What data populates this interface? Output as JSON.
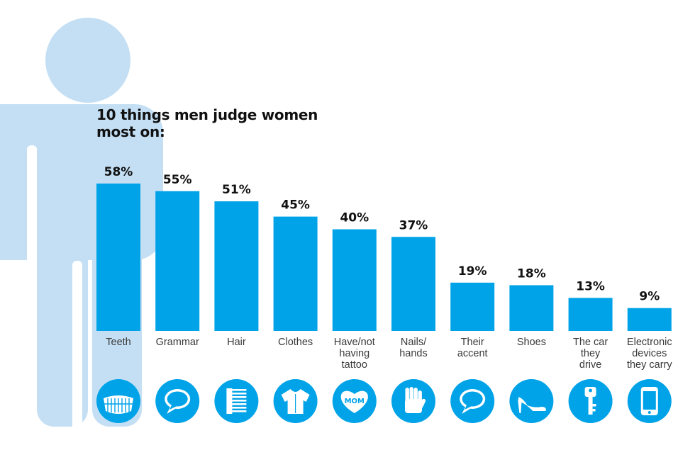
{
  "colors": {
    "bar": "#00a3e8",
    "silhouette": "#c4dff4",
    "icon_fill": "#00a3e8",
    "icon_glyph": "#ffffff",
    "value_text": "#111111",
    "category_text": "#3a3a3a"
  },
  "chart_data": {
    "type": "bar",
    "title": "10 things men judge women most on:",
    "unit": "%",
    "ylim": [
      0,
      60
    ],
    "grid": false,
    "legend": "none",
    "categories": [
      "Teeth",
      "Grammar",
      "Hair",
      "Clothes",
      "Have/not having tattoo",
      "Nails/ hands",
      "Their accent",
      "Shoes",
      "The car they drive",
      "Electronic devices they carry"
    ],
    "category_lines": [
      [
        "Teeth"
      ],
      [
        "Grammar"
      ],
      [
        "Hair"
      ],
      [
        "Clothes"
      ],
      [
        "Have/not",
        "having",
        "tattoo"
      ],
      [
        "Nails/",
        "hands"
      ],
      [
        "Their",
        "accent"
      ],
      [
        "Shoes"
      ],
      [
        "The car",
        "they",
        "drive"
      ],
      [
        "Electronic",
        "devices",
        "they carry"
      ]
    ],
    "values": [
      58,
      55,
      51,
      45,
      40,
      37,
      19,
      18,
      13,
      9
    ],
    "value_labels": [
      "58%",
      "55%",
      "51%",
      "45%",
      "40%",
      "37%",
      "19%",
      "18%",
      "13%",
      "9%"
    ],
    "icons": [
      "teeth-icon",
      "speech-bubble-icon",
      "comb-icon",
      "shirt-icon",
      "mom-heart-tattoo-icon",
      "hand-icon",
      "speech-bubble-icon",
      "high-heel-shoe-icon",
      "car-key-icon",
      "smartphone-icon"
    ],
    "icon_texts": [
      "",
      "",
      "",
      "",
      "MOM",
      "",
      "",
      "",
      "",
      ""
    ]
  }
}
